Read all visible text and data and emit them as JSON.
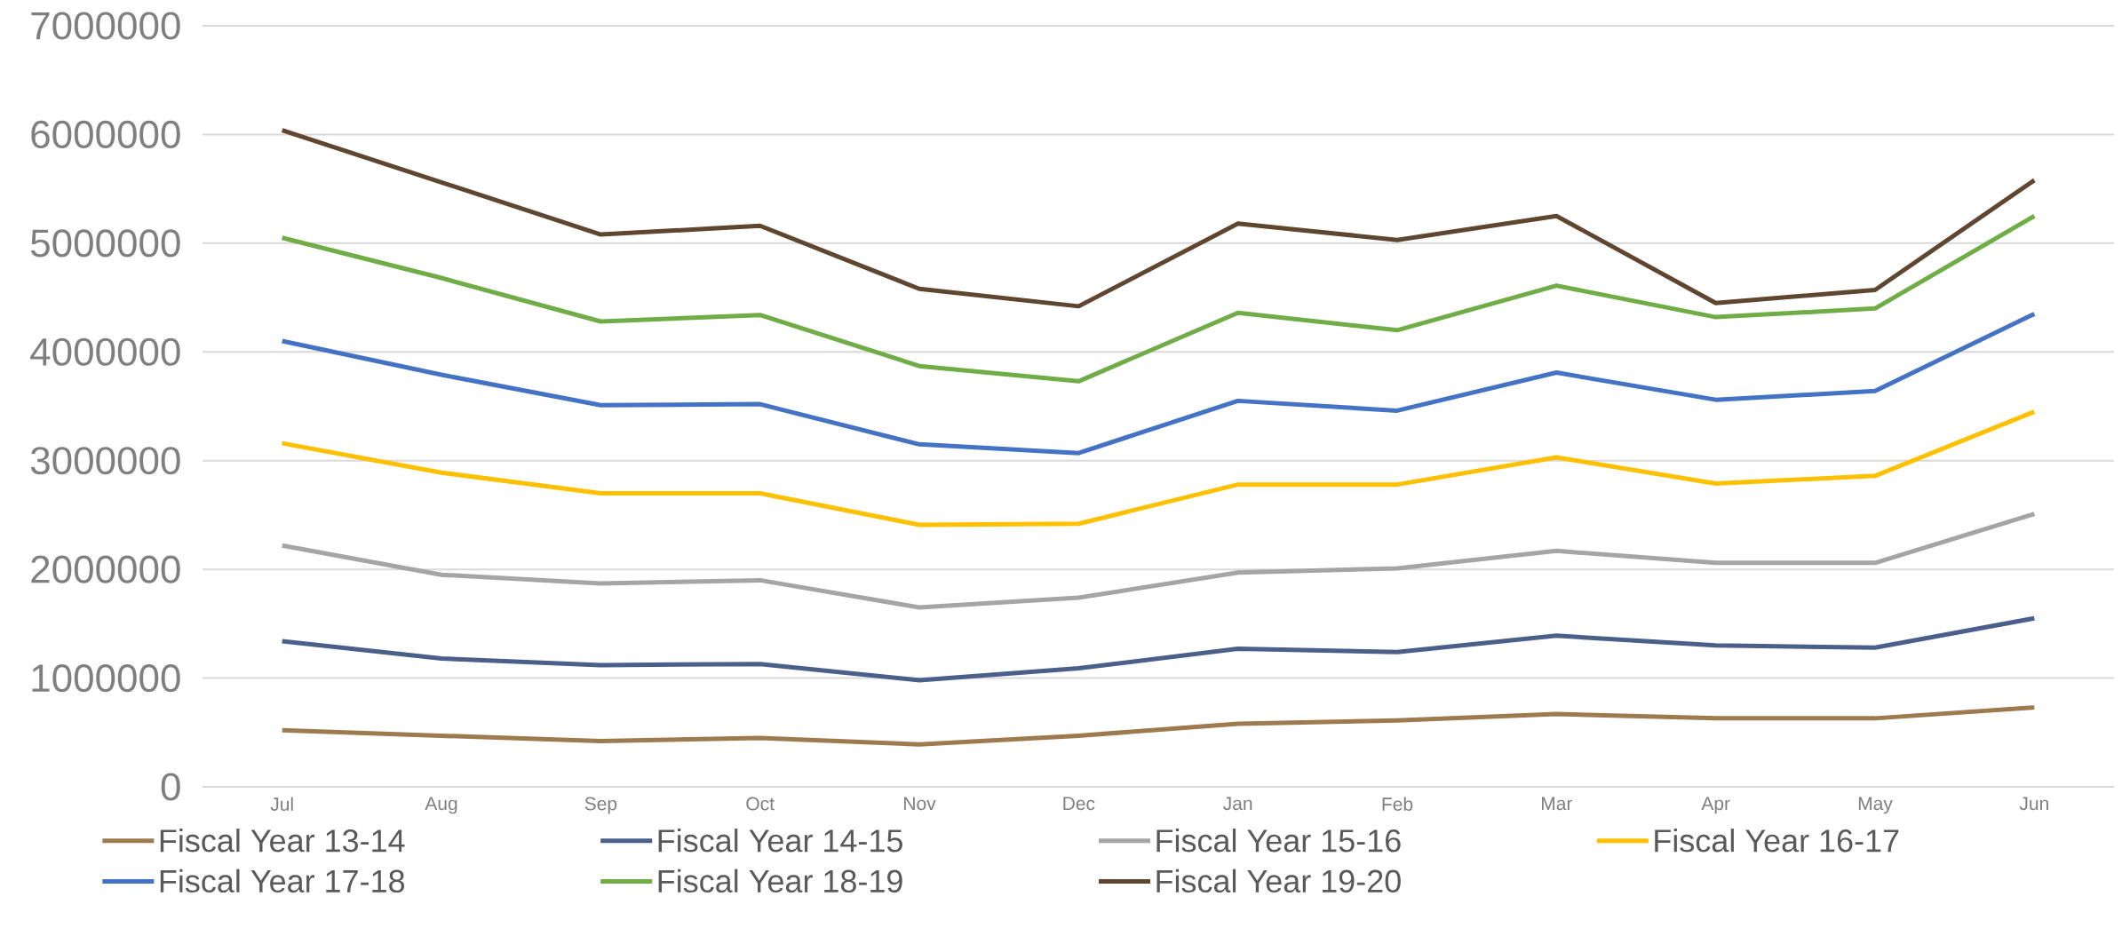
{
  "chart_data": {
    "type": "line",
    "categories": [
      "Jul",
      "Aug",
      "Sep",
      "Oct",
      "Nov",
      "Dec",
      "Jan",
      "Feb",
      "Mar",
      "Apr",
      "May",
      "Jun"
    ],
    "series": [
      {
        "name": "Fiscal Year 13-14",
        "color": "#9e7a4f",
        "values": [
          520000,
          470000,
          420000,
          450000,
          390000,
          470000,
          580000,
          610000,
          670000,
          630000,
          630000,
          730000
        ]
      },
      {
        "name": "Fiscal Year 14-15",
        "color": "#4a5f8a",
        "values": [
          1340000,
          1180000,
          1120000,
          1130000,
          980000,
          1090000,
          1270000,
          1240000,
          1390000,
          1300000,
          1280000,
          1550000
        ]
      },
      {
        "name": "Fiscal Year 15-16",
        "color": "#a5a5a5",
        "values": [
          2220000,
          1950000,
          1870000,
          1900000,
          1650000,
          1740000,
          1970000,
          2010000,
          2170000,
          2060000,
          2060000,
          2510000
        ]
      },
      {
        "name": "Fiscal Year 16-17",
        "color": "#ffc000",
        "values": [
          3160000,
          2890000,
          2700000,
          2700000,
          2410000,
          2420000,
          2780000,
          2780000,
          3030000,
          2790000,
          2860000,
          3450000
        ]
      },
      {
        "name": "Fiscal Year 17-18",
        "color": "#4472c4",
        "values": [
          4100000,
          3790000,
          3510000,
          3520000,
          3150000,
          3070000,
          3550000,
          3460000,
          3810000,
          3560000,
          3640000,
          4350000
        ]
      },
      {
        "name": "Fiscal Year 18-19",
        "color": "#70ad47",
        "values": [
          5050000,
          4680000,
          4280000,
          4340000,
          3870000,
          3730000,
          4360000,
          4200000,
          4610000,
          4320000,
          4400000,
          5250000
        ]
      },
      {
        "name": "Fiscal Year 19-20",
        "color": "#5e4630",
        "values": [
          6040000,
          5560000,
          5080000,
          5160000,
          4580000,
          4420000,
          5180000,
          5030000,
          5250000,
          4450000,
          4570000,
          5580000
        ]
      }
    ],
    "ylim": [
      0,
      7000000
    ],
    "yticks": [
      0,
      1000000,
      2000000,
      3000000,
      4000000,
      5000000,
      6000000,
      7000000
    ],
    "grid": "y",
    "legend": "bottom",
    "marker": "none",
    "line_style": "solid"
  }
}
